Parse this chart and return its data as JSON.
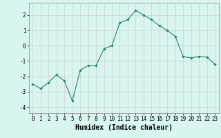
{
  "x": [
    0,
    1,
    2,
    3,
    4,
    5,
    6,
    7,
    8,
    9,
    10,
    11,
    12,
    13,
    14,
    15,
    16,
    17,
    18,
    19,
    20,
    21,
    22,
    23
  ],
  "y": [
    -2.5,
    -2.8,
    -2.4,
    -1.9,
    -2.3,
    -3.6,
    -1.6,
    -1.3,
    -1.3,
    -0.2,
    0.0,
    1.5,
    1.7,
    2.3,
    2.0,
    1.7,
    1.3,
    1.0,
    0.6,
    -0.7,
    -0.8,
    -0.7,
    -0.75,
    -1.2
  ],
  "line_color": "#2e7d6e",
  "marker": "D",
  "marker_size": 1.8,
  "bg_color": "#d8f5f0",
  "grid_color_major": "#c8c8c8",
  "grid_color_minor": "#ddeeed",
  "xlabel": "Humidex (Indice chaleur)",
  "xlim": [
    -0.5,
    23.5
  ],
  "ylim": [
    -4.4,
    2.8
  ],
  "yticks": [
    -4,
    -3,
    -2,
    -1,
    0,
    1,
    2
  ],
  "xticks": [
    0,
    1,
    2,
    3,
    4,
    5,
    6,
    7,
    8,
    9,
    10,
    11,
    12,
    13,
    14,
    15,
    16,
    17,
    18,
    19,
    20,
    21,
    22,
    23
  ],
  "tick_fontsize": 5.5,
  "xlabel_fontsize": 7.0,
  "linewidth": 0.8
}
